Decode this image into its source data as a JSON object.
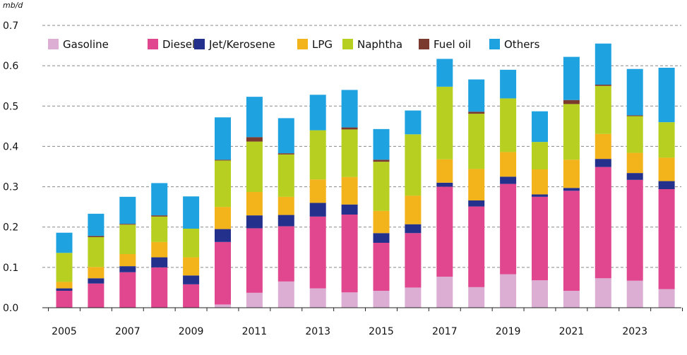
{
  "chart_data": {
    "type": "bar",
    "stacked": true,
    "unit_label": "mb/d",
    "x_tick_labels": [
      "2005",
      "2007",
      "2009",
      "2011",
      "2013",
      "2015",
      "2017",
      "2019",
      "2021",
      "2023"
    ],
    "categories": [
      "2005",
      "2006",
      "2007",
      "2008",
      "2009",
      "2010",
      "2011",
      "2012",
      "2013",
      "2014",
      "2015",
      "2016",
      "2017",
      "2018",
      "2019",
      "2020",
      "2021",
      "2022",
      "2023",
      "2024"
    ],
    "ylim": [
      0,
      0.7
    ],
    "y_ticks": [
      "0.0",
      "0.1",
      "0.2",
      "0.3",
      "0.4",
      "0.5",
      "0.6",
      "0.7"
    ],
    "grid": "horizontal-dashed",
    "legend_position": "top-left",
    "series": [
      {
        "name": "Gasoline",
        "color": "#dcaed4",
        "values": [
          0.0,
          0.0,
          0.0,
          0.0,
          0.0,
          0.008,
          0.037,
          0.065,
          0.048,
          0.038,
          0.042,
          0.05,
          0.077,
          0.051,
          0.083,
          0.068,
          0.042,
          0.073,
          0.067,
          0.046
        ]
      },
      {
        "name": "Diesel",
        "color": "#e0478f",
        "values": [
          0.042,
          0.06,
          0.088,
          0.1,
          0.058,
          0.155,
          0.16,
          0.137,
          0.178,
          0.193,
          0.119,
          0.135,
          0.223,
          0.2,
          0.224,
          0.207,
          0.248,
          0.276,
          0.25,
          0.248
        ]
      },
      {
        "name": "Jet/Kerosene",
        "color": "#23318c",
        "values": [
          0.006,
          0.013,
          0.015,
          0.025,
          0.022,
          0.032,
          0.032,
          0.028,
          0.034,
          0.025,
          0.024,
          0.022,
          0.01,
          0.015,
          0.018,
          0.006,
          0.007,
          0.02,
          0.017,
          0.02
        ]
      },
      {
        "name": "LPG",
        "color": "#f3b31b",
        "values": [
          0.016,
          0.028,
          0.03,
          0.038,
          0.045,
          0.055,
          0.058,
          0.045,
          0.058,
          0.068,
          0.055,
          0.071,
          0.058,
          0.078,
          0.061,
          0.062,
          0.07,
          0.062,
          0.05,
          0.058
        ]
      },
      {
        "name": "Naphtha",
        "color": "#b7cf20",
        "values": [
          0.072,
          0.074,
          0.073,
          0.063,
          0.071,
          0.115,
          0.125,
          0.105,
          0.122,
          0.118,
          0.122,
          0.152,
          0.18,
          0.137,
          0.133,
          0.068,
          0.138,
          0.119,
          0.091,
          0.088
        ]
      },
      {
        "name": "Fuel oil",
        "color": "#7a3b2e",
        "values": [
          0.0,
          0.003,
          0.002,
          0.003,
          0.0,
          0.002,
          0.011,
          0.003,
          0.0,
          0.005,
          0.005,
          0.0,
          0.0,
          0.005,
          0.0,
          0.0,
          0.01,
          0.003,
          0.002,
          0.0
        ]
      },
      {
        "name": "Others",
        "color": "#1ea2e0",
        "values": [
          0.05,
          0.055,
          0.067,
          0.08,
          0.08,
          0.105,
          0.1,
          0.087,
          0.088,
          0.093,
          0.076,
          0.059,
          0.069,
          0.08,
          0.071,
          0.076,
          0.107,
          0.102,
          0.115,
          0.135
        ]
      }
    ]
  }
}
